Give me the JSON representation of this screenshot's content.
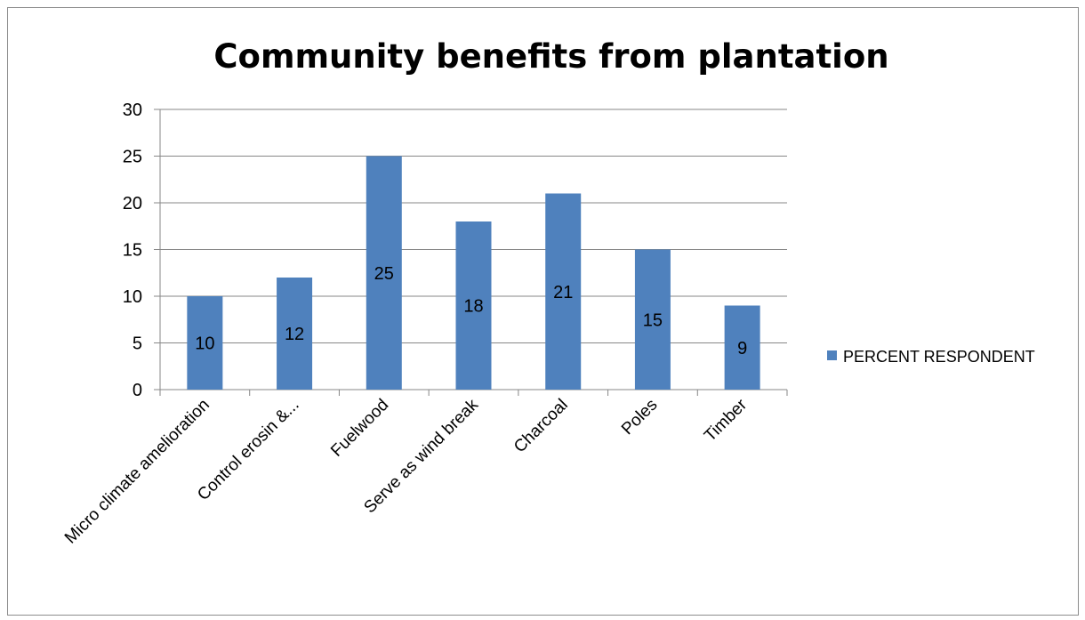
{
  "chart_data": {
    "type": "bar",
    "title": "Community benefits from plantation",
    "xlabel": "",
    "ylabel": "",
    "categories": [
      "Micro climate amelioration",
      "Control erosin &...",
      "Fuelwood",
      "Serve as wind break",
      "Charcoal",
      "Poles",
      "Timber"
    ],
    "series": [
      {
        "name": "PERCENT RESPONDENT",
        "values": [
          10,
          12,
          25,
          18,
          21,
          15,
          9
        ],
        "color": "#4f81bd"
      }
    ],
    "ylim": [
      0,
      30
    ],
    "yticks": [
      0,
      5,
      10,
      15,
      20,
      25,
      30
    ],
    "grid": true,
    "legend": "right",
    "data_labels": true
  }
}
